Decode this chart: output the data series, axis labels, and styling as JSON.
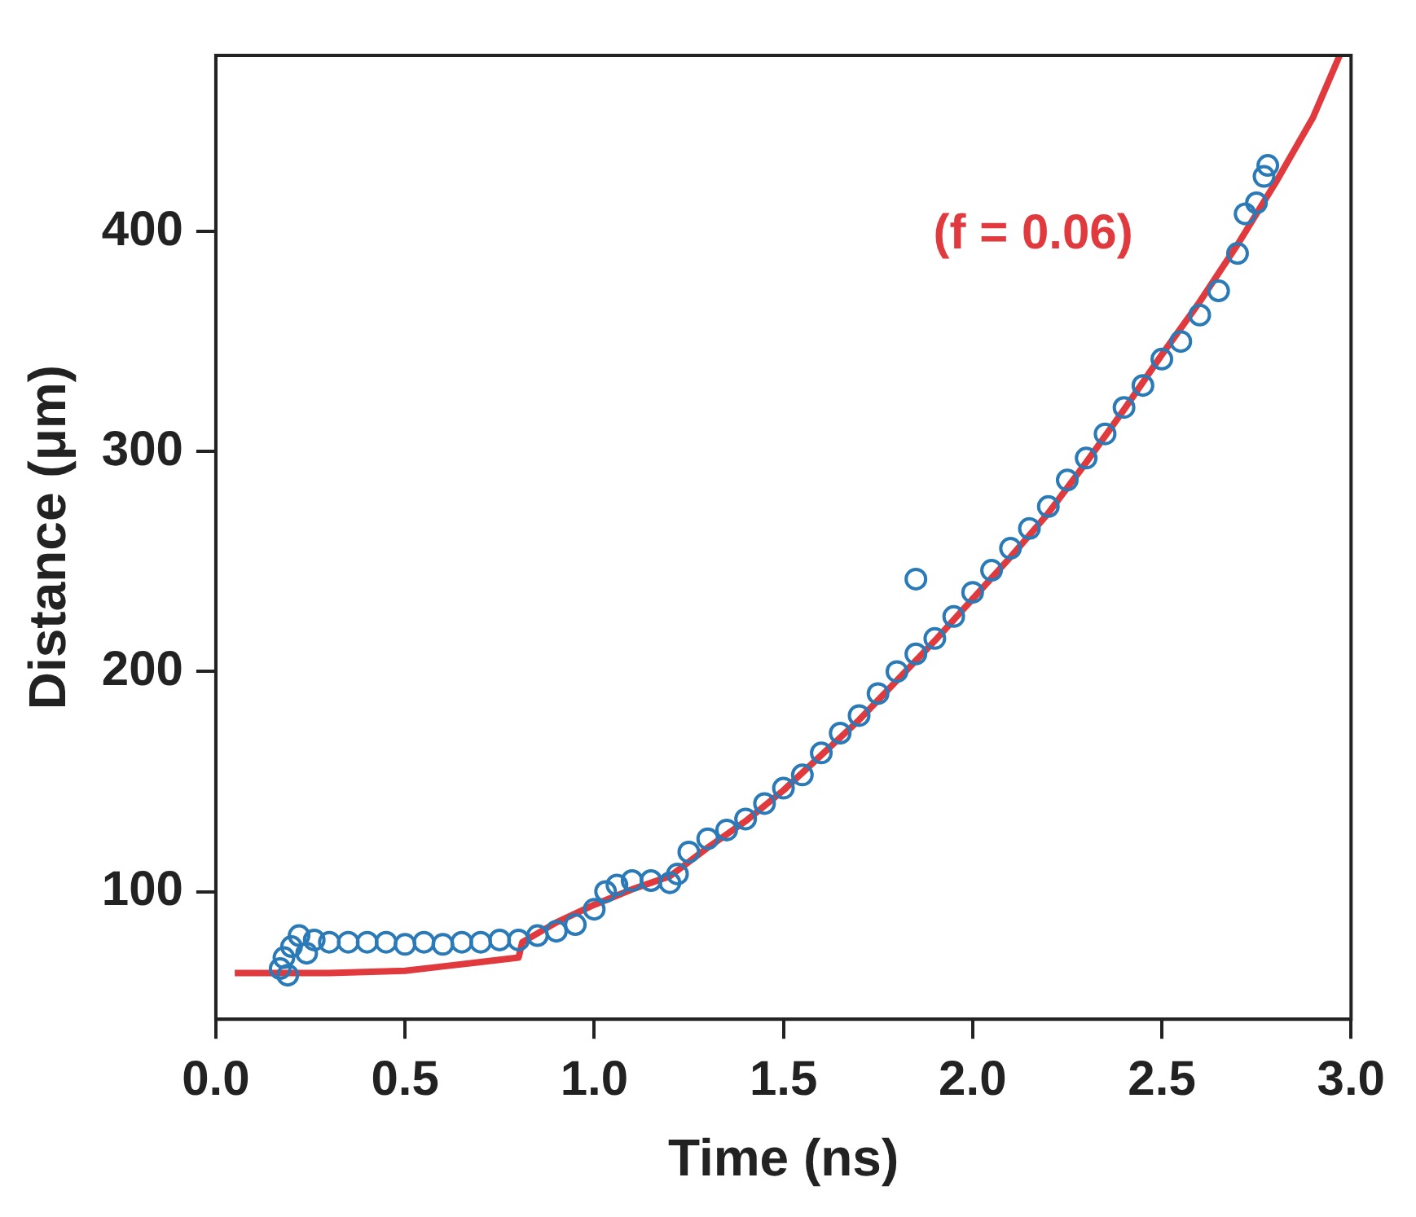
{
  "chart_data": {
    "type": "scatter",
    "xlabel": "Time (ns)",
    "ylabel": "Distance (μm)",
    "xlim": [
      0,
      3
    ],
    "ylim": [
      42,
      480
    ],
    "xticks": [
      {
        "value": 0,
        "label": "0.0"
      },
      0.5,
      {
        "value": 1,
        "label": "1.0"
      },
      1.5,
      {
        "value": 2,
        "label": "2.0"
      },
      2.5,
      {
        "value": 3,
        "label": "3.0"
      }
    ],
    "yticks": [
      100,
      200,
      300,
      400
    ],
    "grid": false,
    "legend": false,
    "annotations": [
      "(f = 0.06)"
    ],
    "series": [
      {
        "color": "#2a7ab8",
        "marker": "circle",
        "x": [
          0.17,
          0.18,
          0.19,
          0.2,
          0.22,
          0.24,
          0.26,
          0.3,
          0.35,
          0.4,
          0.45,
          0.5,
          0.55,
          0.6,
          0.65,
          0.7,
          0.75,
          0.8,
          0.85,
          0.9,
          0.95,
          1.0,
          1.03,
          1.06,
          1.1,
          1.15,
          1.2,
          1.22,
          1.25,
          1.3,
          1.35,
          1.4,
          1.45,
          1.5,
          1.55,
          1.6,
          1.65,
          1.7,
          1.75,
          1.8,
          1.85,
          1.85,
          1.9,
          1.95,
          2.0,
          2.05,
          2.1,
          2.15,
          2.2,
          2.25,
          2.3,
          2.35,
          2.4,
          2.45,
          2.5,
          2.55,
          2.6,
          2.65,
          2.7,
          2.72,
          2.75,
          2.77,
          2.78
        ],
        "values": [
          65,
          70,
          62,
          75,
          80,
          72,
          78,
          77,
          77,
          77,
          77,
          76,
          77,
          76,
          77,
          77,
          78,
          78,
          80,
          82,
          85,
          92,
          100,
          103,
          105,
          105,
          104,
          108,
          118,
          124,
          128,
          133,
          140,
          147,
          153,
          163,
          172,
          180,
          190,
          200,
          242,
          208,
          215,
          225,
          236,
          246,
          256,
          265,
          275,
          287,
          297,
          308,
          320,
          330,
          342,
          350,
          362,
          373,
          390,
          408,
          413,
          425,
          430
        ]
      },
      {
        "type": "line",
        "color": "#e03a3e",
        "marker": "none",
        "line_style": "solid",
        "x": [
          0.05,
          0.3,
          0.5,
          0.6,
          0.7,
          0.8,
          0.81,
          0.9,
          1.0,
          1.1,
          1.2,
          1.3,
          1.4,
          1.5,
          1.6,
          1.7,
          1.8,
          1.9,
          2.0,
          2.1,
          2.2,
          2.3,
          2.4,
          2.5,
          2.6,
          2.7,
          2.8,
          2.9,
          2.97
        ],
        "values": [
          63,
          63,
          64,
          66,
          68,
          70,
          77,
          86,
          94,
          101,
          107,
          120,
          132,
          146,
          162,
          178,
          196,
          214,
          233,
          252,
          272,
          295,
          319,
          344,
          368,
          394,
          422,
          452,
          480
        ]
      }
    ]
  }
}
